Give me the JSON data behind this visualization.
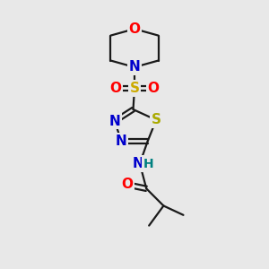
{
  "bg_color": "#e8e8e8",
  "bond_color": "#1a1a1a",
  "bond_width": 1.6,
  "atom_colors": {
    "O": "#ff0000",
    "N": "#0000cc",
    "S_sulfonyl": "#ccaa00",
    "S_ring": "#aaaa00",
    "H": "#008080"
  },
  "font_size": 11
}
